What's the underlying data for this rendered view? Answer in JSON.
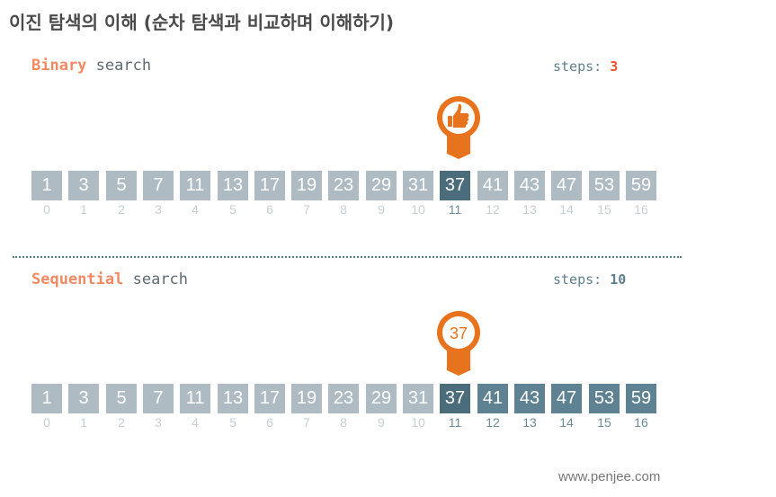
{
  "title": "이진 탐색의 이해 (순차 탐색과 비교하며 이해하기)",
  "binary": {
    "name_accent": "Binary",
    "name_rest": "search",
    "steps_label": "steps:",
    "steps_value": "3",
    "marker": "thumbs-up-icon",
    "values": [
      "1",
      "3",
      "5",
      "7",
      "11",
      "13",
      "17",
      "19",
      "23",
      "29",
      "31",
      "37",
      "41",
      "43",
      "47",
      "53",
      "59"
    ],
    "indices": [
      "0",
      "1",
      "2",
      "3",
      "4",
      "5",
      "6",
      "7",
      "8",
      "9",
      "10",
      "11",
      "12",
      "13",
      "14",
      "15",
      "16"
    ],
    "found_index": 11
  },
  "sequential": {
    "name_accent": "Sequential",
    "name_rest": "search",
    "steps_label": "steps:",
    "steps_value": "10",
    "marker_label": "37",
    "values": [
      "1",
      "3",
      "5",
      "7",
      "11",
      "13",
      "17",
      "19",
      "23",
      "29",
      "31",
      "37",
      "41",
      "43",
      "47",
      "53",
      "59"
    ],
    "indices": [
      "0",
      "1",
      "2",
      "3",
      "4",
      "5",
      "6",
      "7",
      "8",
      "9",
      "10",
      "11",
      "12",
      "13",
      "14",
      "15",
      "16"
    ],
    "found_index": 11
  },
  "footer": "www.penjee.com",
  "colors": {
    "accent_orange": "#e8731e",
    "cell_default": "#aebbc3",
    "cell_visited": "#5e8291",
    "cell_found": "#4b6c7b",
    "steps_highlight": "#e8502a"
  }
}
